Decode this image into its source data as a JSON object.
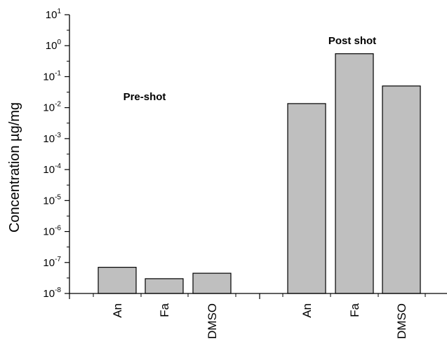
{
  "chart_data": {
    "type": "bar",
    "ylabel": "Concentration µg/mg",
    "yscale": "log",
    "ylim": [
      1e-08,
      10
    ],
    "ytick_exponents": [
      -8,
      -7,
      -6,
      -5,
      -4,
      -3,
      -2,
      -1,
      0,
      1
    ],
    "ytick_base": "10",
    "bar_color": "#bfbfbf",
    "groups": [
      {
        "label": "Pre-shot",
        "bars": [
          {
            "category": "An",
            "value": 7e-08
          },
          {
            "category": "Fa",
            "value": 3e-08
          },
          {
            "category": "DMSO",
            "value": 4.5e-08
          }
        ]
      },
      {
        "label": "Post shot",
        "bars": [
          {
            "category": "An",
            "value": 0.0135
          },
          {
            "category": "Fa",
            "value": 0.55
          },
          {
            "category": "DMSO",
            "value": 0.05
          }
        ]
      }
    ],
    "grid": false,
    "legend": "none"
  }
}
